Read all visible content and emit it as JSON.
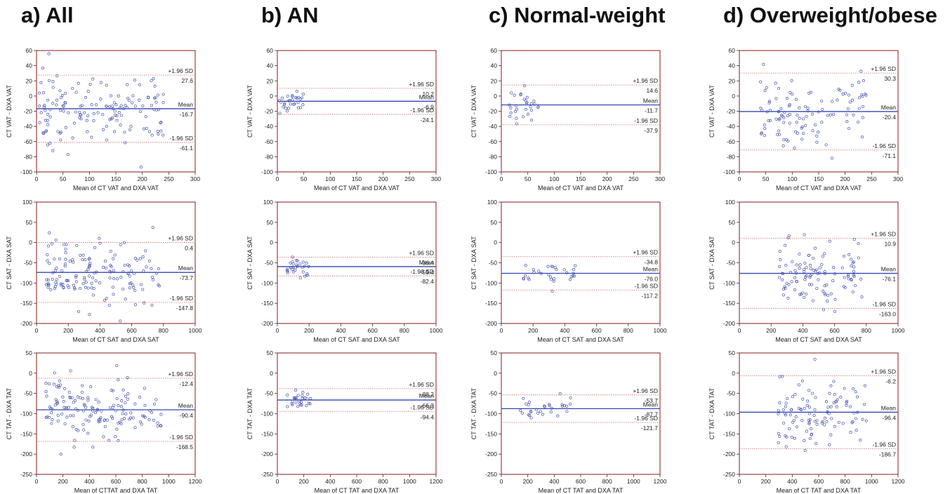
{
  "column_titles": [
    "a) All",
    "b) AN",
    "c) Normal-weight",
    "d) Overweight/obese"
  ],
  "colors": {
    "frame": "#8b1a1a",
    "mean_line": "#3347b8",
    "sd_line": "#c96b6b",
    "points": "#4a58b0",
    "text": "#222222"
  },
  "chart_data": [
    {
      "type": "scatter",
      "panel": "a-VAT",
      "group": "All",
      "xlabel": "Mean of CT VAT and DXA VAT",
      "ylabel": "CT VAT - DXA VAT",
      "xlim": [
        0,
        300
      ],
      "ylim": [
        -100,
        60
      ],
      "xticks": [
        0,
        50,
        100,
        150,
        200,
        250,
        300
      ],
      "yticks": [
        60,
        40,
        20,
        0,
        -20,
        -40,
        -60,
        -80,
        -100
      ],
      "lines": [
        {
          "label": "+1.96 SD",
          "value": 27.6
        },
        {
          "label": "Mean",
          "value": -16.7
        },
        {
          "label": "-1.96 SD",
          "value": -61.1
        }
      ],
      "n_points": 150,
      "x_range": [
        5,
        240
      ],
      "scatter_sd": 22
    },
    {
      "type": "scatter",
      "panel": "b-VAT",
      "group": "AN",
      "xlabel": "Mean of CT VAT and DXA VAT",
      "ylabel": "CT VAT - DXA VAT",
      "xlim": [
        0,
        300
      ],
      "ylim": [
        -100,
        60
      ],
      "xticks": [
        0,
        50,
        100,
        150,
        200,
        250,
        300
      ],
      "yticks": [
        60,
        40,
        20,
        0,
        -20,
        -40,
        -60,
        -80,
        -100
      ],
      "lines": [
        {
          "label": "+1.96 SD",
          "value": 10.2
        },
        {
          "label": "Mean",
          "value": -6.9
        },
        {
          "label": "-1.96 SD",
          "value": -24.1
        }
      ],
      "n_points": 30,
      "x_range": [
        3,
        50
      ],
      "scatter_sd": 8
    },
    {
      "type": "scatter",
      "panel": "c-VAT",
      "group": "Normal-weight",
      "xlabel": "Mean of CT VAT and DXA VAT",
      "ylabel": "CT VAT - DXA VAT",
      "xlim": [
        0,
        300
      ],
      "ylim": [
        -100,
        60
      ],
      "xticks": [
        0,
        50,
        100,
        150,
        200,
        250,
        300
      ],
      "yticks": [
        60,
        40,
        20,
        0,
        -20,
        -40,
        -60,
        -80,
        -100
      ],
      "lines": [
        {
          "label": "+1.96 SD",
          "value": 14.6
        },
        {
          "label": "Mean",
          "value": -11.7
        },
        {
          "label": "-1.96 SD",
          "value": -37.9
        }
      ],
      "n_points": 30,
      "x_range": [
        15,
        70
      ],
      "scatter_sd": 12
    },
    {
      "type": "scatter",
      "panel": "d-VAT",
      "group": "Overweight/obese",
      "xlabel": "Mean of CT VAT and DXA VAT",
      "ylabel": "CT VAT - DXA VAT",
      "xlim": [
        0,
        300
      ],
      "ylim": [
        -100,
        60
      ],
      "xticks": [
        0,
        50,
        100,
        150,
        200,
        250,
        300
      ],
      "yticks": [
        60,
        40,
        20,
        0,
        -20,
        -40,
        -60,
        -80,
        -100
      ],
      "lines": [
        {
          "label": "+1.96 SD",
          "value": 30.3
        },
        {
          "label": "Mean",
          "value": -20.4
        },
        {
          "label": "-1.96 SD",
          "value": -71.1
        }
      ],
      "n_points": 110,
      "x_range": [
        40,
        240
      ],
      "scatter_sd": 24
    },
    {
      "type": "scatter",
      "panel": "a-SAT",
      "group": "All",
      "xlabel": "Mean of CT SAT and DXA SAT",
      "ylabel": "CT SAT - DXA SAT",
      "xlim": [
        0,
        1000
      ],
      "ylim": [
        -200,
        100
      ],
      "xticks": [
        0,
        200,
        400,
        600,
        800,
        1000
      ],
      "yticks": [
        100,
        50,
        0,
        -50,
        -100,
        -150,
        -200
      ],
      "lines": [
        {
          "label": "+1.96 SD",
          "value": 0.4
        },
        {
          "label": "Mean",
          "value": -73.7
        },
        {
          "label": "-1.96 SD",
          "value": -147.8
        }
      ],
      "n_points": 150,
      "x_range": [
        60,
        780
      ],
      "scatter_sd": 36
    },
    {
      "type": "scatter",
      "panel": "b-SAT",
      "group": "AN",
      "xlabel": "Mean of CT SAT and DXA SAT",
      "ylabel": "CT SAT - DXA SAT",
      "xlim": [
        0,
        1000
      ],
      "ylim": [
        -200,
        100
      ],
      "xticks": [
        0,
        200,
        400,
        600,
        800,
        1000
      ],
      "yticks": [
        100,
        50,
        0,
        -50,
        -100,
        -150,
        -200
      ],
      "lines": [
        {
          "label": "+1.96 SD",
          "value": -36.4
        },
        {
          "label": "Mean",
          "value": -59.4
        },
        {
          "label": "-1.96 SD",
          "value": -82.4
        }
      ],
      "n_points": 30,
      "x_range": [
        60,
        200
      ],
      "scatter_sd": 10
    },
    {
      "type": "scatter",
      "panel": "c-SAT",
      "group": "Normal-weight",
      "xlabel": "Mean of CT SAT and DXA SAT",
      "ylabel": "CT SAT - DXA SAT",
      "xlim": [
        0,
        1000
      ],
      "ylim": [
        -200,
        100
      ],
      "xticks": [
        0,
        200,
        400,
        600,
        800,
        1000
      ],
      "yticks": [
        100,
        50,
        0,
        -50,
        -100,
        -150,
        -200
      ],
      "lines": [
        {
          "label": "+1.96 SD",
          "value": -34.8
        },
        {
          "label": "Mean",
          "value": -76.0
        },
        {
          "label": "-1.96 SD",
          "value": -117.2
        }
      ],
      "n_points": 30,
      "x_range": [
        110,
        480
      ],
      "scatter_sd": 18
    },
    {
      "type": "scatter",
      "panel": "d-SAT",
      "group": "Overweight/obese",
      "xlabel": "Mean of CT SAT and DXA SAT",
      "ylabel": "CT SAT - DXA SAT",
      "xlim": [
        0,
        1000
      ],
      "ylim": [
        -200,
        100
      ],
      "xticks": [
        0,
        200,
        400,
        600,
        800,
        1000
      ],
      "yticks": [
        100,
        50,
        0,
        -50,
        -100,
        -150,
        -200
      ],
      "lines": [
        {
          "label": "+1.96 SD",
          "value": 10.9
        },
        {
          "label": "Mean",
          "value": -76.1
        },
        {
          "label": "-1.96 SD",
          "value": -163.0
        }
      ],
      "n_points": 110,
      "x_range": [
        250,
        780
      ],
      "scatter_sd": 42
    },
    {
      "type": "scatter",
      "panel": "a-TAT",
      "group": "All",
      "xlabel": "Mean of CTTAT and DXA TAT",
      "ylabel": "CT TAT - DXA TAT",
      "xlim": [
        0,
        1200
      ],
      "ylim": [
        -250,
        50
      ],
      "xticks": [
        0,
        200,
        400,
        600,
        800,
        1000,
        1200
      ],
      "yticks": [
        50,
        0,
        -50,
        -100,
        -150,
        -200,
        -250
      ],
      "lines": [
        {
          "label": "+1.96 SD",
          "value": -12.4
        },
        {
          "label": "Mean",
          "value": -90.4
        },
        {
          "label": "-1.96 SD",
          "value": -168.5
        }
      ],
      "n_points": 150,
      "x_range": [
        70,
        960
      ],
      "scatter_sd": 38
    },
    {
      "type": "scatter",
      "panel": "b-TAT",
      "group": "AN",
      "xlabel": "Mean of CT TAT and DXA TAT",
      "ylabel": "CT TAT - DXA TAT",
      "xlim": [
        0,
        1200
      ],
      "ylim": [
        -250,
        50
      ],
      "xticks": [
        0,
        200,
        400,
        600,
        800,
        1000,
        1200
      ],
      "yticks": [
        50,
        0,
        -50,
        -100,
        -150,
        -200,
        -250
      ],
      "lines": [
        {
          "label": "+1.96 SD",
          "value": -38.2
        },
        {
          "label": "Mean",
          "value": -66.3
        },
        {
          "label": "-1.96 SD",
          "value": -94.4
        }
      ],
      "n_points": 30,
      "x_range": [
        70,
        260
      ],
      "scatter_sd": 12
    },
    {
      "type": "scatter",
      "panel": "c-TAT",
      "group": "Normal-weight",
      "xlabel": "Mean of CT TAT and DXA TAT",
      "ylabel": "CT TAT - DXA TAT",
      "xlim": [
        0,
        1200
      ],
      "ylim": [
        -250,
        50
      ],
      "xticks": [
        0,
        200,
        400,
        600,
        800,
        1000,
        1200
      ],
      "yticks": [
        50,
        0,
        -50,
        -100,
        -150,
        -200,
        -250
      ],
      "lines": [
        {
          "label": "+1.96 SD",
          "value": -53.7
        },
        {
          "label": "Mean",
          "value": -87.7
        },
        {
          "label": "-1.96 SD",
          "value": -121.7
        }
      ],
      "n_points": 30,
      "x_range": [
        140,
        560
      ],
      "scatter_sd": 16
    },
    {
      "type": "scatter",
      "panel": "d-TAT",
      "group": "Overweight/obese",
      "xlabel": "Mean of CT TAT and DXA TAT",
      "ylabel": "CT TAT - DXA TAT",
      "xlim": [
        0,
        1200
      ],
      "ylim": [
        -250,
        50
      ],
      "xticks": [
        0,
        200,
        400,
        600,
        800,
        1000,
        1200
      ],
      "yticks": [
        50,
        0,
        -50,
        -100,
        -150,
        -200,
        -250
      ],
      "lines": [
        {
          "label": "+1.96 SD",
          "value": -6.2
        },
        {
          "label": "Mean",
          "value": -96.4
        },
        {
          "label": "-1.96 SD",
          "value": -186.7
        }
      ],
      "n_points": 110,
      "x_range": [
        280,
        960
      ],
      "scatter_sd": 44
    }
  ]
}
